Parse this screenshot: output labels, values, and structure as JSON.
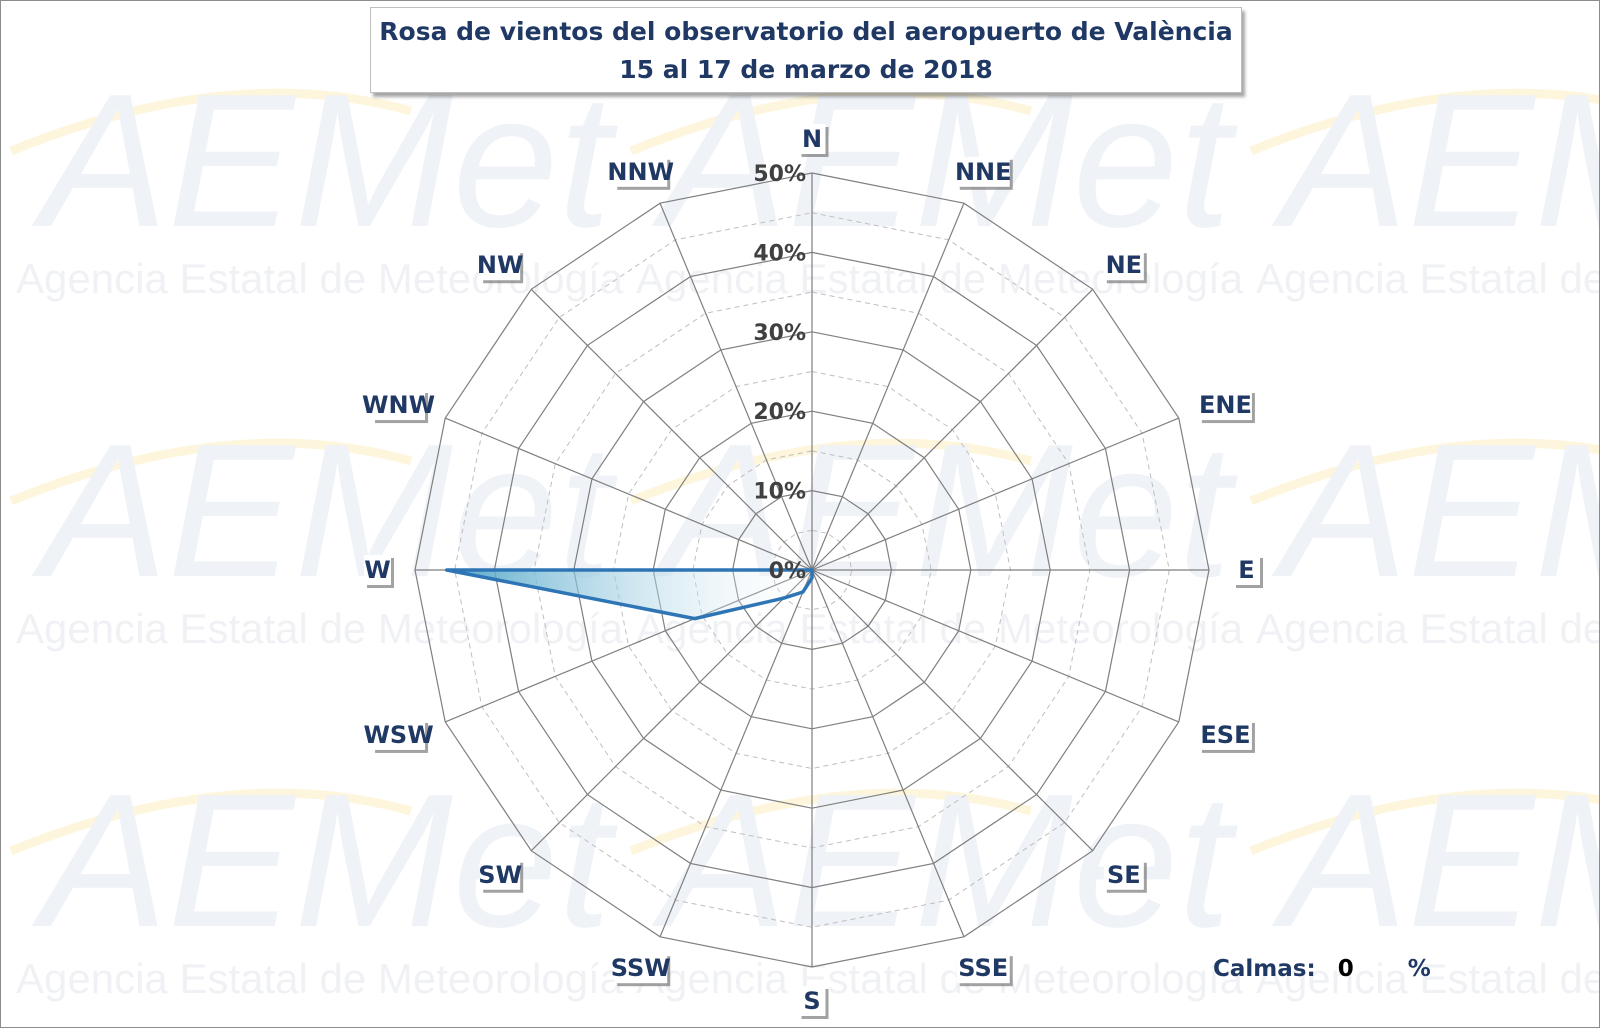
{
  "watermark": {
    "logo_text": "AEMet",
    "agency_text": "Agencia Estatal de Meteorología"
  },
  "title": {
    "line1": "Rosa de vientos del observatorio del aeropuerto de València",
    "line2": "15 al 17 de marzo de 2018"
  },
  "calmas": {
    "label": "Calmas:",
    "value": "0",
    "unit": "%"
  },
  "colors": {
    "title_text": "#1f3864",
    "series_line": "#2e75b6",
    "series_fill_dark": "#4ba3c7",
    "grid": "#7f7f7f"
  },
  "chart_data": {
    "type": "radar",
    "directions": [
      "N",
      "NNE",
      "NE",
      "ENE",
      "E",
      "ESE",
      "SE",
      "SSE",
      "S",
      "SSW",
      "SW",
      "WSW",
      "W",
      "WNW",
      "NW",
      "NNW"
    ],
    "series": [
      {
        "values": [
          0,
          0,
          0,
          0,
          0,
          0,
          0,
          0,
          1,
          3,
          5,
          16,
          46,
          0,
          0,
          0
        ]
      }
    ],
    "radial_ticks": [
      "0%",
      "10%",
      "20%",
      "30%",
      "40%",
      "50%"
    ],
    "rmax": 50,
    "gridlines": "solid at 10% steps, dashed at 5% steps",
    "legend": "none"
  }
}
